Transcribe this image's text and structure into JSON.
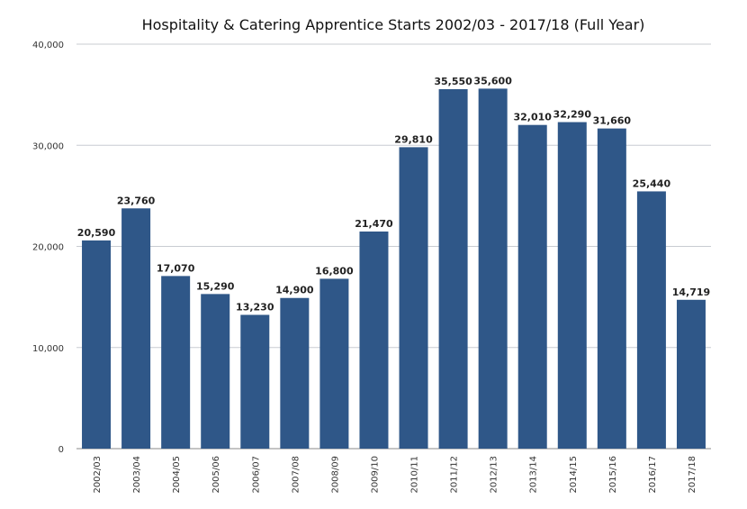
{
  "chart_data": {
    "type": "bar",
    "title": "Hospitality & Catering Apprentice Starts 2002/03 - 2017/18 (Full Year)",
    "xlabel": "",
    "ylabel": "",
    "categories": [
      "2002/03",
      "2003/04",
      "2004/05",
      "2005/06",
      "2006/07",
      "2007/08",
      "2008/09",
      "2009/10",
      "2010/11",
      "2011/12",
      "2012/13",
      "2013/14",
      "2014/15",
      "2015/16",
      "2016/17",
      "2017/18"
    ],
    "values": [
      20590,
      23760,
      17070,
      15290,
      13230,
      14900,
      16800,
      21470,
      29810,
      35550,
      35600,
      32010,
      32290,
      31660,
      25440,
      14719
    ],
    "data_labels": [
      "20,590",
      "23,760",
      "17,070",
      "15,290",
      "13,230",
      "14,900",
      "16,800",
      "21,470",
      "29,810",
      "35,550",
      "35,600",
      "32,010",
      "32,290",
      "31,660",
      "25,440",
      "14,719"
    ],
    "ylim": [
      0,
      40000
    ],
    "yticks": [
      0,
      10000,
      20000,
      30000,
      40000
    ],
    "ytick_labels": [
      "0",
      "10,000",
      "20,000",
      "30,000",
      "40,000"
    ],
    "grid": true,
    "legend": "none",
    "bar_color": "#2f5788",
    "grid_color": "#c8ccd2"
  }
}
